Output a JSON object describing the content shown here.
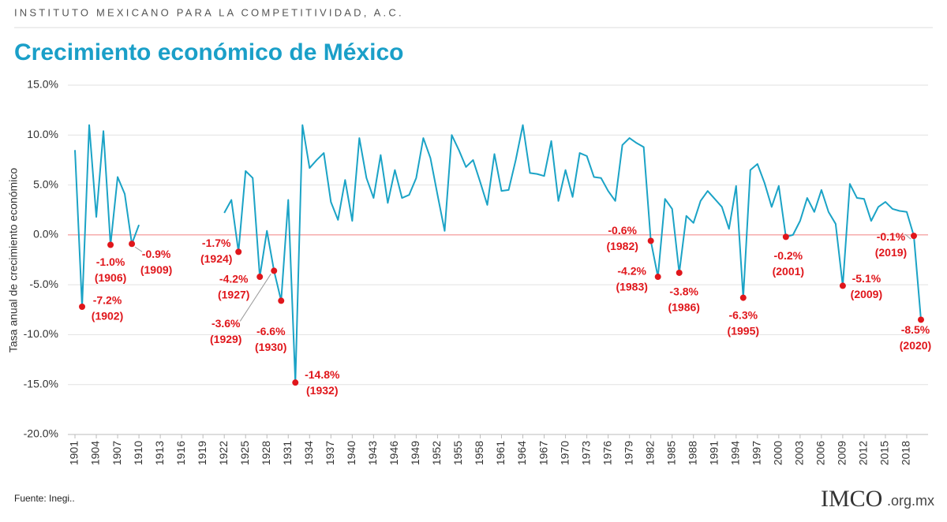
{
  "header": "INSTITUTO MEXICANO PARA LA COMPETITIVIDAD, A.C.",
  "source": "Fuente: Inegi..",
  "logo": {
    "brand": "IMCO",
    "domain": ".org.mx"
  },
  "chart_data": {
    "type": "line",
    "title": "Crecimiento económico de México",
    "y_label": "Tasa anual de crecimiento económico",
    "xlim": [
      1900,
      2021
    ],
    "ylim": [
      -20,
      15
    ],
    "xticks": [
      1901,
      1904,
      1907,
      1910,
      1913,
      1916,
      1919,
      1922,
      1925,
      1928,
      1931,
      1934,
      1937,
      1940,
      1943,
      1946,
      1949,
      1952,
      1955,
      1958,
      1961,
      1964,
      1967,
      1970,
      1973,
      1976,
      1979,
      1982,
      1985,
      1988,
      1991,
      1994,
      1997,
      2000,
      2003,
      2006,
      2009,
      2012,
      2015,
      2018
    ],
    "yticks": [
      {
        "value": -20,
        "label": "-20.0%"
      },
      {
        "value": -15,
        "label": "-15.0%"
      },
      {
        "value": -10,
        "label": "-10.0%"
      },
      {
        "value": -5,
        "label": "-5.0%"
      },
      {
        "value": 0,
        "label": "0.0%"
      },
      {
        "value": 5,
        "label": "5.0%"
      },
      {
        "value": 10,
        "label": "10.0%"
      },
      {
        "value": 15,
        "label": "15.0%"
      }
    ],
    "grid": true,
    "grid_color": "#e2e2e2",
    "zero_line_color": "#f08080",
    "x": [
      1901,
      1902,
      1903,
      1904,
      1905,
      1906,
      1907,
      1908,
      1909,
      1910,
      1911,
      1912,
      1913,
      1914,
      1915,
      1916,
      1917,
      1918,
      1919,
      1920,
      1921,
      1922,
      1923,
      1924,
      1925,
      1926,
      1927,
      1928,
      1929,
      1930,
      1931,
      1932,
      1933,
      1934,
      1935,
      1936,
      1937,
      1938,
      1939,
      1940,
      1941,
      1942,
      1943,
      1944,
      1945,
      1946,
      1947,
      1948,
      1949,
      1950,
      1951,
      1952,
      1953,
      1954,
      1955,
      1956,
      1957,
      1958,
      1959,
      1960,
      1961,
      1962,
      1963,
      1964,
      1965,
      1966,
      1967,
      1968,
      1969,
      1970,
      1971,
      1972,
      1973,
      1974,
      1975,
      1976,
      1977,
      1978,
      1979,
      1980,
      1981,
      1982,
      1983,
      1984,
      1985,
      1986,
      1987,
      1988,
      1989,
      1990,
      1991,
      1992,
      1993,
      1994,
      1995,
      1996,
      1997,
      1998,
      1999,
      2000,
      2001,
      2002,
      2003,
      2004,
      2005,
      2006,
      2007,
      2008,
      2009,
      2010,
      2011,
      2012,
      2013,
      2014,
      2015,
      2016,
      2017,
      2018,
      2019,
      2020
    ],
    "series": [
      {
        "color": "#1ba3c6",
        "marker_color": "#e0161b",
        "values": [
          8.5,
          -7.2,
          11.0,
          1.8,
          10.4,
          -1.0,
          5.8,
          4.1,
          -0.9,
          1.0,
          null,
          null,
          null,
          null,
          null,
          null,
          null,
          null,
          null,
          null,
          null,
          2.2,
          3.5,
          -1.7,
          6.4,
          5.7,
          -4.2,
          0.4,
          -3.6,
          -6.6,
          3.5,
          -14.8,
          11.0,
          6.7,
          7.5,
          8.2,
          3.3,
          1.5,
          5.5,
          1.4,
          9.7,
          5.7,
          3.7,
          8.0,
          3.2,
          6.5,
          3.7,
          4.0,
          5.7,
          9.7,
          7.7,
          4.0,
          0.4,
          10.0,
          8.5,
          6.8,
          7.5,
          5.3,
          3.0,
          8.1,
          4.4,
          4.5,
          7.5,
          11.0,
          6.2,
          6.1,
          5.9,
          9.4,
          3.4,
          6.5,
          3.8,
          8.2,
          7.9,
          5.8,
          5.7,
          4.4,
          3.4,
          9.0,
          9.7,
          9.2,
          8.8,
          -0.6,
          -4.2,
          3.6,
          2.6,
          -3.8,
          1.9,
          1.2,
          3.4,
          4.4,
          3.6,
          2.8,
          0.6,
          4.9,
          -6.3,
          6.5,
          7.1,
          5.2,
          2.8,
          4.9,
          -0.2,
          0.0,
          1.4,
          3.7,
          2.3,
          4.5,
          2.3,
          1.1,
          -5.1,
          5.1,
          3.7,
          3.6,
          1.4,
          2.8,
          3.3,
          2.6,
          2.4,
          2.3,
          -0.1,
          -8.5
        ],
        "value_labels": [
          null,
          "-7.2%",
          null,
          null,
          null,
          "-1.0%",
          null,
          null,
          "-0.9%",
          null,
          null,
          null,
          null,
          null,
          null,
          null,
          null,
          null,
          null,
          null,
          null,
          null,
          null,
          "-1.7%",
          null,
          null,
          "-4.2%",
          null,
          "-3.6%",
          "-6.6%",
          null,
          "-14.8%",
          null,
          null,
          null,
          null,
          null,
          null,
          null,
          null,
          null,
          null,
          null,
          null,
          null,
          null,
          null,
          null,
          null,
          null,
          null,
          null,
          null,
          null,
          null,
          null,
          null,
          null,
          null,
          null,
          null,
          null,
          null,
          null,
          null,
          null,
          null,
          null,
          null,
          null,
          null,
          null,
          null,
          null,
          null,
          null,
          null,
          null,
          null,
          null,
          null,
          "-0.6%",
          "-4.2%",
          null,
          null,
          "-3.8%",
          null,
          null,
          null,
          null,
          null,
          null,
          null,
          null,
          "-6.3%",
          null,
          null,
          null,
          null,
          null,
          "-0.2%",
          null,
          null,
          null,
          null,
          null,
          null,
          null,
          "-5.1%",
          null,
          null,
          null,
          null,
          null,
          null,
          null,
          null,
          null,
          "-0.1%",
          "-8.5%"
        ],
        "year_labels": [
          null,
          "(1902)",
          null,
          null,
          null,
          "(1906)",
          null,
          null,
          "(1909)",
          null,
          null,
          null,
          null,
          null,
          null,
          null,
          null,
          null,
          null,
          null,
          null,
          null,
          null,
          "(1924)",
          null,
          null,
          "(1927)",
          null,
          "(1929)",
          "(1930)",
          null,
          "(1932)",
          null,
          null,
          null,
          null,
          null,
          null,
          null,
          null,
          null,
          null,
          null,
          null,
          null,
          null,
          null,
          null,
          null,
          null,
          null,
          null,
          null,
          null,
          null,
          null,
          null,
          null,
          null,
          null,
          null,
          null,
          null,
          null,
          null,
          null,
          null,
          null,
          null,
          null,
          null,
          null,
          null,
          null,
          null,
          null,
          null,
          null,
          null,
          null,
          null,
          "(1982)",
          "(1983)",
          null,
          null,
          "(1986)",
          null,
          null,
          null,
          null,
          null,
          null,
          null,
          null,
          "(1995)",
          null,
          null,
          null,
          null,
          null,
          "(2001)",
          null,
          null,
          null,
          null,
          null,
          null,
          null,
          "(2009)",
          null,
          null,
          null,
          null,
          null,
          null,
          null,
          null,
          null,
          "(2019)",
          "(2020)"
        ]
      }
    ]
  }
}
